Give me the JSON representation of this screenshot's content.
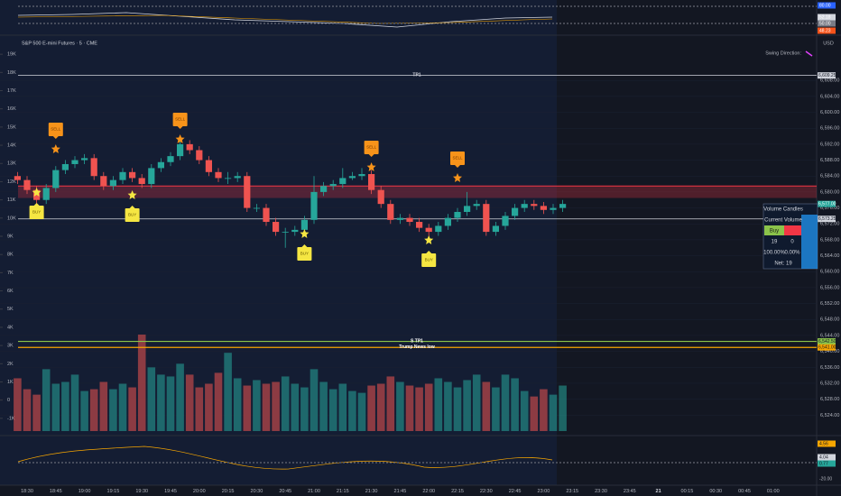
{
  "chart_data": {
    "type": "candlestick",
    "title": "S&P 500 E-mini Futures · 5 · CME",
    "currency": "USD",
    "annotation": "Swing Direction:",
    "up_color": "#26a69a",
    "down_color": "#ef5350",
    "categories": [
      null,
      "18:30",
      null,
      null,
      "18:45",
      null,
      null,
      "19:00",
      null,
      null,
      "19:15",
      null,
      null,
      "19:30",
      null,
      null,
      "19:45",
      null,
      null,
      "20:00",
      null,
      null,
      "20:15",
      null,
      null,
      "20:30",
      null,
      null,
      "20:45",
      null,
      null,
      "21:00",
      null,
      null,
      "21:15",
      null,
      null,
      "21:30",
      null,
      null,
      "21:45",
      null,
      null,
      "22:00",
      null,
      null,
      "22:15",
      null,
      null,
      "22:30",
      null,
      null,
      "22:45",
      null,
      null,
      "23:00",
      null,
      null,
      "23:15",
      null,
      null,
      "23:30",
      null,
      null,
      "23:45",
      null,
      null,
      "21",
      null,
      null,
      "00:15",
      null,
      null,
      "00:30",
      null,
      null,
      "00:45",
      null,
      null,
      "01:00",
      null
    ],
    "open": [
      6584.0,
      6583.0,
      6580.5,
      6578.0,
      6581.0,
      6585.5,
      6587.0,
      6588.0,
      6588.5,
      6584.0,
      6581.5,
      6583.0,
      6585.0,
      6583.5,
      6582.0,
      6586.0,
      6587.5,
      6589.0,
      6592.0,
      6590.5,
      6588.0,
      6585.0,
      6583.5,
      6583.5,
      6584.0,
      6576.0,
      6576.0,
      6572.5,
      6570.0,
      6570.0,
      6570.5,
      6573.0,
      6580.0,
      6581.5,
      6582.0,
      6583.5,
      6584.0,
      6584.5,
      6580.5,
      6577.0,
      6573.0,
      6573.5,
      6572.5,
      6571.0,
      6570.0,
      6571.5,
      6573.5,
      6575.0,
      6576.5,
      6577.0,
      6570.0,
      6571.5,
      6574.0,
      6576.0,
      6577.0,
      6576.5,
      6575.5,
      6576.0,
      null,
      null,
      null,
      null,
      null,
      null,
      null,
      null,
      null,
      null,
      null,
      null,
      null,
      null,
      null,
      null,
      null,
      null,
      null,
      null,
      null,
      null,
      null
    ],
    "high": [
      6585,
      6584,
      6581.5,
      6582,
      6586.5,
      6588,
      6589,
      6589.5,
      6589.5,
      6585,
      6584,
      6586,
      6586,
      6584.5,
      6587,
      6588.5,
      6590,
      6593,
      6593,
      6591.5,
      6589,
      6586,
      6585,
      6585,
      6585,
      6577,
      6577,
      6573.5,
      6571,
      6571.5,
      6574,
      6584,
      6582.5,
      6583,
      6586,
      6585,
      6586,
      6585.5,
      6581.5,
      6578,
      6574.5,
      6574.5,
      6573.5,
      6572,
      6572.5,
      6574.5,
      6576,
      6580,
      6578,
      6578,
      6572.5,
      6575,
      6577,
      6578,
      6578,
      6577.5,
      6577,
      6578,
      null,
      null,
      null,
      null,
      null,
      null,
      null,
      null,
      null,
      null,
      null,
      null,
      null,
      null,
      null,
      null,
      null,
      null,
      null,
      null,
      null,
      null,
      null
    ],
    "low": [
      6582,
      6579.5,
      6577,
      6577,
      6580,
      6584.5,
      6586,
      6587,
      6583,
      6580.5,
      6580.5,
      6582,
      6582.5,
      6581,
      6581,
      6585,
      6586.5,
      6588,
      6589.5,
      6587,
      6584,
      6582.5,
      6582,
      6582.5,
      6575,
      6575,
      6571.5,
      6569,
      6566,
      6569,
      6569.5,
      6572,
      6579,
      6580.5,
      6581,
      6583,
      6583,
      6579.5,
      6576,
      6572,
      6572,
      6571.5,
      6570,
      6569,
      6569,
      6570.5,
      6572.5,
      6574,
      6575.5,
      6569,
      6569,
      6570.5,
      6573,
      6575,
      6575.5,
      6574.5,
      6574.5,
      6575,
      null,
      null,
      null,
      null,
      null,
      null,
      null,
      null,
      null,
      null,
      null,
      null,
      null,
      null,
      null,
      null,
      null,
      null,
      null,
      null,
      null,
      null,
      null
    ],
    "close": [
      6583.0,
      6580.5,
      6578.0,
      6581.0,
      6585.5,
      6587.0,
      6588.0,
      6588.5,
      6584.0,
      6581.5,
      6583.0,
      6585.0,
      6583.5,
      6582.0,
      6586.0,
      6587.5,
      6589.0,
      6592.0,
      6590.5,
      6588.0,
      6585.0,
      6583.5,
      6583.5,
      6584.0,
      6576.0,
      6576.0,
      6572.5,
      6570.0,
      6570.0,
      6570.5,
      6573.0,
      6580.0,
      6581.5,
      6582.0,
      6583.5,
      6584.0,
      6584.5,
      6580.5,
      6577.0,
      6573.0,
      6573.5,
      6572.5,
      6571.0,
      6570.0,
      6571.5,
      6573.5,
      6575.0,
      6576.5,
      6577.0,
      6570.0,
      6571.5,
      6574.0,
      6576.0,
      6577.0,
      6576.5,
      6575.5,
      6576.0,
      6577.0,
      null,
      null,
      null,
      null,
      null,
      null,
      null,
      null,
      null,
      null,
      null,
      null,
      null,
      null,
      null,
      null,
      null,
      null,
      null,
      null,
      null,
      null,
      null
    ],
    "volume": [
      1200,
      600,
      300,
      1700,
      900,
      1000,
      1400,
      500,
      600,
      1000,
      600,
      900,
      700,
      3600,
      1800,
      1400,
      1300,
      2000,
      1400,
      700,
      900,
      1500,
      2600,
      1200,
      800,
      1100,
      900,
      1000,
      1300,
      900,
      700,
      1700,
      1000,
      600,
      900,
      500,
      400,
      800,
      900,
      1300,
      1000,
      800,
      700,
      900,
      1200,
      1000,
      700,
      1100,
      1400,
      1000,
      700,
      1400,
      1200,
      500,
      200,
      600,
      300,
      800,
      null,
      null,
      null,
      null,
      null,
      null,
      null,
      null,
      null,
      null,
      null,
      null,
      null,
      null,
      null,
      null,
      null,
      null,
      null,
      null,
      null,
      null,
      null
    ],
    "ylim": [
      6520,
      6618
    ],
    "yticks": [
      {
        "value": 6524,
        "label": "6,524.00"
      },
      {
        "value": 6528,
        "label": "6,528.00"
      },
      {
        "value": 6532,
        "label": "6,532.00"
      },
      {
        "value": 6536,
        "label": "6,536.00"
      },
      {
        "value": 6540,
        "label": "6,540.00"
      },
      {
        "value": 6544,
        "label": "6,544.00"
      },
      {
        "value": 6548,
        "label": "6,548.00"
      },
      {
        "value": 6552,
        "label": "6,552.00"
      },
      {
        "value": 6556,
        "label": "6,556.00"
      },
      {
        "value": 6560,
        "label": "6,560.00"
      },
      {
        "value": 6564,
        "label": "6,564.00"
      },
      {
        "value": 6568,
        "label": "6,568.00"
      },
      {
        "value": 6572,
        "label": "6,572.00"
      },
      {
        "value": 6576,
        "label": "6,576.00"
      },
      {
        "value": 6580,
        "label": "6,580.00"
      },
      {
        "value": 6584,
        "label": "6,584.00"
      },
      {
        "value": 6588,
        "label": "6,588.00"
      },
      {
        "value": 6592,
        "label": "6,592.00"
      },
      {
        "value": 6596,
        "label": "6,596.00"
      },
      {
        "value": 6600,
        "label": "6,600.00"
      },
      {
        "value": 6604,
        "label": "6,604.00"
      },
      {
        "value": 6608,
        "label": "6,608.00"
      }
    ],
    "y2lim": [
      -1700,
      19750
    ],
    "y2ticks": [
      {
        "value": 19000,
        "label": "19K"
      },
      {
        "value": 18000,
        "label": "18K"
      },
      {
        "value": 17000,
        "label": "17K"
      },
      {
        "value": 16000,
        "label": "16K"
      },
      {
        "value": 15000,
        "label": "15K"
      },
      {
        "value": 14000,
        "label": "14K"
      },
      {
        "value": 13000,
        "label": "13K"
      },
      {
        "value": 12000,
        "label": "12K"
      },
      {
        "value": 11000,
        "label": "11K"
      },
      {
        "value": 10000,
        "label": "10K"
      },
      {
        "value": 9000,
        "label": "9K"
      },
      {
        "value": 8000,
        "label": "8K"
      },
      {
        "value": 7000,
        "label": "7K"
      },
      {
        "value": 6000,
        "label": "6K"
      },
      {
        "value": 5000,
        "label": "5K"
      },
      {
        "value": 4000,
        "label": "4K"
      },
      {
        "value": 3000,
        "label": "3K"
      },
      {
        "value": 2000,
        "label": "2K"
      },
      {
        "value": 1000,
        "label": "1K"
      },
      0,
      {
        "value": -1000,
        "label": "-1K"
      }
    ],
    "resistance_zone": [
      6578.5,
      6581.5
    ],
    "levels": [
      {
        "name": "TP1",
        "value": 6609.25,
        "value_label": "6,609.25",
        "color": "#d1d4dc"
      },
      {
        "value": 6573.25,
        "value_label": "6,573.25",
        "color": "#d1d4dc"
      },
      {
        "name": "S TP1",
        "value": 6542.5,
        "value_label": "6,542.50",
        "color": "#8bc34a"
      },
      {
        "name": "Trump News low",
        "value": 6541,
        "value_label": "6,541.00",
        "color": "#f7a600"
      }
    ],
    "last_price_label": "6,577.00",
    "signals": [
      "BUY",
      "SELL",
      "BUY",
      "SELL",
      "BUY",
      "SELL",
      "BUY",
      "SELL"
    ],
    "top_panel_labels": [
      "80.00",
      "52.18",
      "50.00",
      "48.23"
    ],
    "bottom_panel_labels": [
      "4.56",
      "4.04",
      "0.77",
      "-20.00"
    ]
  },
  "volume_table": {
    "title": "Volume Candles",
    "header": "Current Volume",
    "buy": "Buy",
    "rows": [
      [
        "19",
        "0"
      ],
      [
        "100.00%",
        "0.00%"
      ]
    ],
    "net": "Net: 19"
  }
}
